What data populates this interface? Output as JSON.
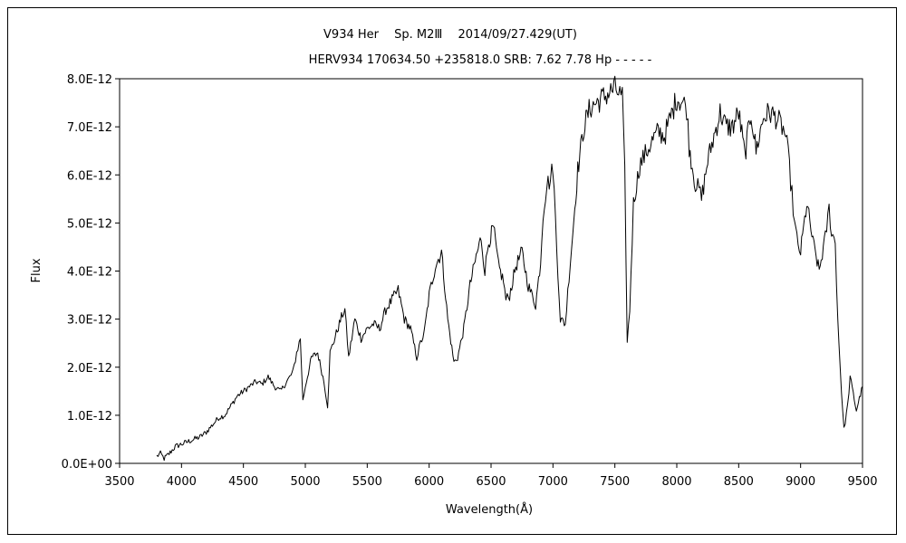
{
  "chart_data": {
    "type": "line",
    "title": "V934 Her　 Sp. M2Ⅲ　 2014/09/27.429(UT)",
    "subtitle": "HERV934 170634.50 +235818.0 SRB: 7.62 7.78 Hp - - - - -",
    "xlabel": "Wavelength(Å)",
    "ylabel": "Flux",
    "xlim": [
      3500,
      9500
    ],
    "ylim": [
      0,
      8e-12
    ],
    "x_ticks": [
      "3500",
      "4000",
      "4500",
      "5000",
      "5500",
      "6000",
      "6500",
      "7000",
      "7500",
      "8000",
      "8500",
      "9000",
      "9500"
    ],
    "y_ticks": [
      "0.0E+00",
      "1.0E-12",
      "2.0E-12",
      "3.0E-12",
      "4.0E-12",
      "5.0E-12",
      "6.0E-12",
      "7.0E-12",
      "8.0E-12"
    ],
    "grid": false,
    "series": [
      {
        "color": "#000000",
        "x": [
          3800,
          3830,
          3860,
          3900,
          3950,
          4000,
          4050,
          4100,
          4150,
          4200,
          4250,
          4300,
          4350,
          4400,
          4450,
          4500,
          4550,
          4600,
          4650,
          4700,
          4750,
          4800,
          4850,
          4900,
          4930,
          4960,
          4980,
          5000,
          5050,
          5100,
          5150,
          5180,
          5200,
          5250,
          5300,
          5320,
          5350,
          5400,
          5450,
          5500,
          5550,
          5600,
          5650,
          5700,
          5750,
          5800,
          5850,
          5900,
          5930,
          5960,
          6000,
          6050,
          6100,
          6150,
          6200,
          6230,
          6280,
          6330,
          6380,
          6420,
          6450,
          6480,
          6520,
          6560,
          6600,
          6620,
          6650,
          6700,
          6750,
          6800,
          6860,
          6900,
          6920,
          6950,
          6980,
          7000,
          7030,
          7060,
          7100,
          7130,
          7160,
          7200,
          7250,
          7300,
          7350,
          7400,
          7450,
          7500,
          7530,
          7560,
          7580,
          7600,
          7620,
          7650,
          7700,
          7800,
          7850,
          7900,
          7950,
          8000,
          8050,
          8080,
          8100,
          8150,
          8180,
          8200,
          8250,
          8300,
          8350,
          8400,
          8450,
          8500,
          8550,
          8600,
          8640,
          8700,
          8750,
          8800,
          8850,
          8880,
          8900,
          8930,
          8950,
          8980,
          9000,
          9050,
          9100,
          9150,
          9200,
          9230,
          9250,
          9280,
          9300,
          9330,
          9350,
          9380,
          9400,
          9450,
          9500
        ],
        "values": [
          1.5e-13,
          2e-13,
          1e-13,
          2e-13,
          3.5e-13,
          4e-13,
          4.5e-13,
          5e-13,
          5.5e-13,
          6.5e-13,
          8e-13,
          9.5e-13,
          1e-12,
          1.2e-12,
          1.4e-12,
          1.5e-12,
          1.6e-12,
          1.7e-12,
          1.65e-12,
          1.8e-12,
          1.6e-12,
          1.5e-12,
          1.7e-12,
          1.9e-12,
          2.3e-12,
          2.6e-12,
          1.3e-12,
          1.6e-12,
          2.2e-12,
          2.3e-12,
          1.7e-12,
          1.2e-12,
          2.3e-12,
          2.7e-12,
          3.1e-12,
          3.2e-12,
          2.2e-12,
          3e-12,
          2.6e-12,
          2.8e-12,
          2.9e-12,
          2.8e-12,
          3.2e-12,
          3.4e-12,
          3.6e-12,
          3e-12,
          2.8e-12,
          2.2e-12,
          2.5e-12,
          2.7e-12,
          3.5e-12,
          4.1e-12,
          4.4e-12,
          3e-12,
          2.1e-12,
          2.2e-12,
          2.8e-12,
          3.7e-12,
          4.3e-12,
          4.7e-12,
          4e-12,
          4.6e-12,
          4.9e-12,
          4.1e-12,
          3.8e-12,
          3.4e-12,
          3.5e-12,
          4.1e-12,
          4.4e-12,
          3.7e-12,
          3.3e-12,
          4.2e-12,
          5.2e-12,
          5.8e-12,
          5.9e-12,
          6.2e-12,
          4.5e-12,
          3e-12,
          2.9e-12,
          3.9e-12,
          4.8e-12,
          6.1e-12,
          7e-12,
          7.4e-12,
          7.5e-12,
          7.6e-12,
          7.7e-12,
          7.8e-12,
          7.7e-12,
          7.6e-12,
          6e-12,
          2.5e-12,
          3.2e-12,
          5.4e-12,
          6.2e-12,
          6.7e-12,
          6.9e-12,
          6.8e-12,
          7.2e-12,
          7.6e-12,
          7.5e-12,
          7.4e-12,
          6.6e-12,
          5.8e-12,
          5.7e-12,
          5.5e-12,
          6.3e-12,
          6.8e-12,
          7.3e-12,
          7e-12,
          7e-12,
          7.3e-12,
          6.4e-12,
          7.3e-12,
          6.5e-12,
          7.2e-12,
          7.3e-12,
          7.2e-12,
          7e-12,
          6.8e-12,
          6.4e-12,
          5.6e-12,
          5e-12,
          4.5e-12,
          4.4e-12,
          5.4e-12,
          4.6e-12,
          4e-12,
          4.7e-12,
          5.3e-12,
          4.8e-12,
          4.6e-12,
          3e-12,
          1.5e-12,
          7e-13,
          1.2e-12,
          1.8e-12,
          1.1e-12,
          1.6e-12
        ]
      }
    ]
  }
}
